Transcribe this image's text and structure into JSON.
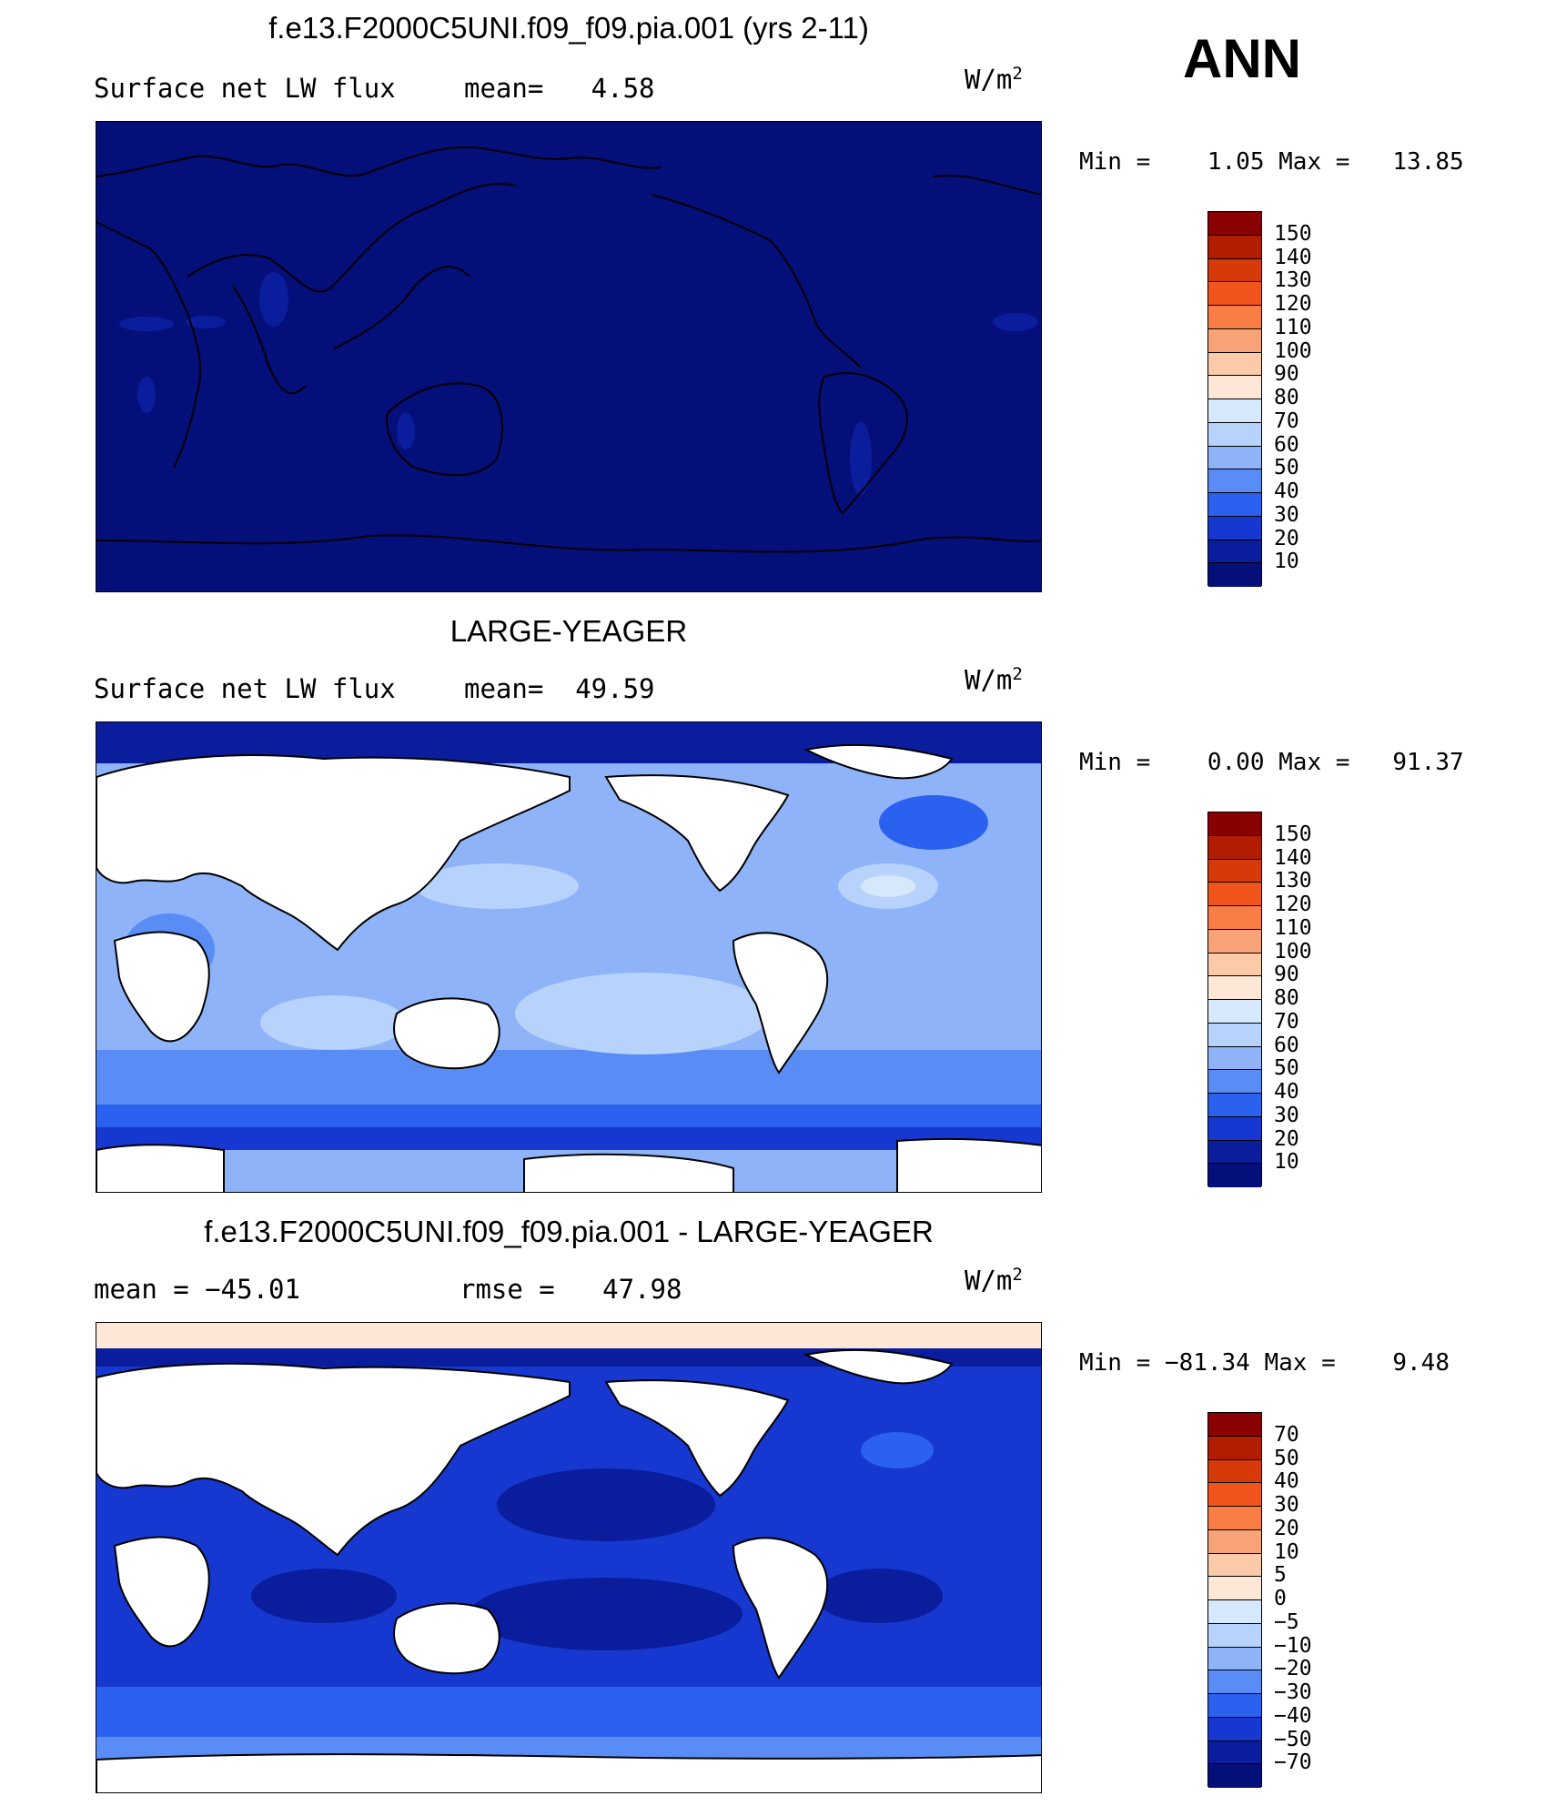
{
  "season": "ANN",
  "units_text": "W/m",
  "units_sup": "2",
  "panels": [
    {
      "title": "f.e13.F2000C5UNI.f09_f09.pia.001 (yrs 2-11)",
      "left_label": "Surface net LW flux",
      "mid_label": "mean=   4.58",
      "minmax": "Min =    1.05 Max =   13.85",
      "levels": [
        "150",
        "140",
        "130",
        "120",
        "110",
        "100",
        "90",
        "80",
        "70",
        "60",
        "50",
        "40",
        "30",
        "20",
        "10"
      ],
      "colors": [
        "#8a0000",
        "#b21d00",
        "#d63a0a",
        "#f2551c",
        "#f97e45",
        "#f8a277",
        "#fbcaa8",
        "#fde8d8",
        "#d6e8fb",
        "#b7d2fb",
        "#8fb3f9",
        "#5a8cf6",
        "#2a62ef",
        "#1638d0",
        "#0a1d9c",
        "#050f7a"
      ],
      "mean_value": 4.58,
      "min_value": 1.05,
      "max_value": 13.85
    },
    {
      "title": "LARGE-YEAGER",
      "left_label": "Surface net LW flux",
      "mid_label": "mean=  49.59",
      "minmax": "Min =    0.00 Max =   91.37",
      "levels": [
        "150",
        "140",
        "130",
        "120",
        "110",
        "100",
        "90",
        "80",
        "70",
        "60",
        "50",
        "40",
        "30",
        "20",
        "10"
      ],
      "colors": [
        "#8a0000",
        "#b21d00",
        "#d63a0a",
        "#f2551c",
        "#f97e45",
        "#f8a277",
        "#fbcaa8",
        "#fde8d8",
        "#d6e8fb",
        "#b7d2fb",
        "#8fb3f9",
        "#5a8cf6",
        "#2a62ef",
        "#1638d0",
        "#0a1d9c",
        "#050f7a"
      ],
      "mean_value": 49.59,
      "min_value": 0.0,
      "max_value": 91.37
    },
    {
      "title": "f.e13.F2000C5UNI.f09_f09.pia.001 - LARGE-YEAGER",
      "left_label": "mean = −45.01",
      "mid_label": "rmse =   47.98",
      "minmax": "Min = −81.34 Max =    9.48",
      "levels": [
        "70",
        "50",
        "40",
        "30",
        "20",
        "10",
        "5",
        "0",
        "−5",
        "−10",
        "−20",
        "−30",
        "−40",
        "−50",
        "−70"
      ],
      "colors": [
        "#8a0000",
        "#b21d00",
        "#d63a0a",
        "#f2551c",
        "#f97e45",
        "#f8a277",
        "#fbcaa8",
        "#fde8d8",
        "#d6e8fb",
        "#b7d2fb",
        "#8fb3f9",
        "#5a8cf6",
        "#2a62ef",
        "#1638d0",
        "#0a1d9c",
        "#050f7a"
      ],
      "mean_value": -45.01,
      "rmse_value": 47.98,
      "min_value": -81.34,
      "max_value": 9.48
    }
  ]
}
